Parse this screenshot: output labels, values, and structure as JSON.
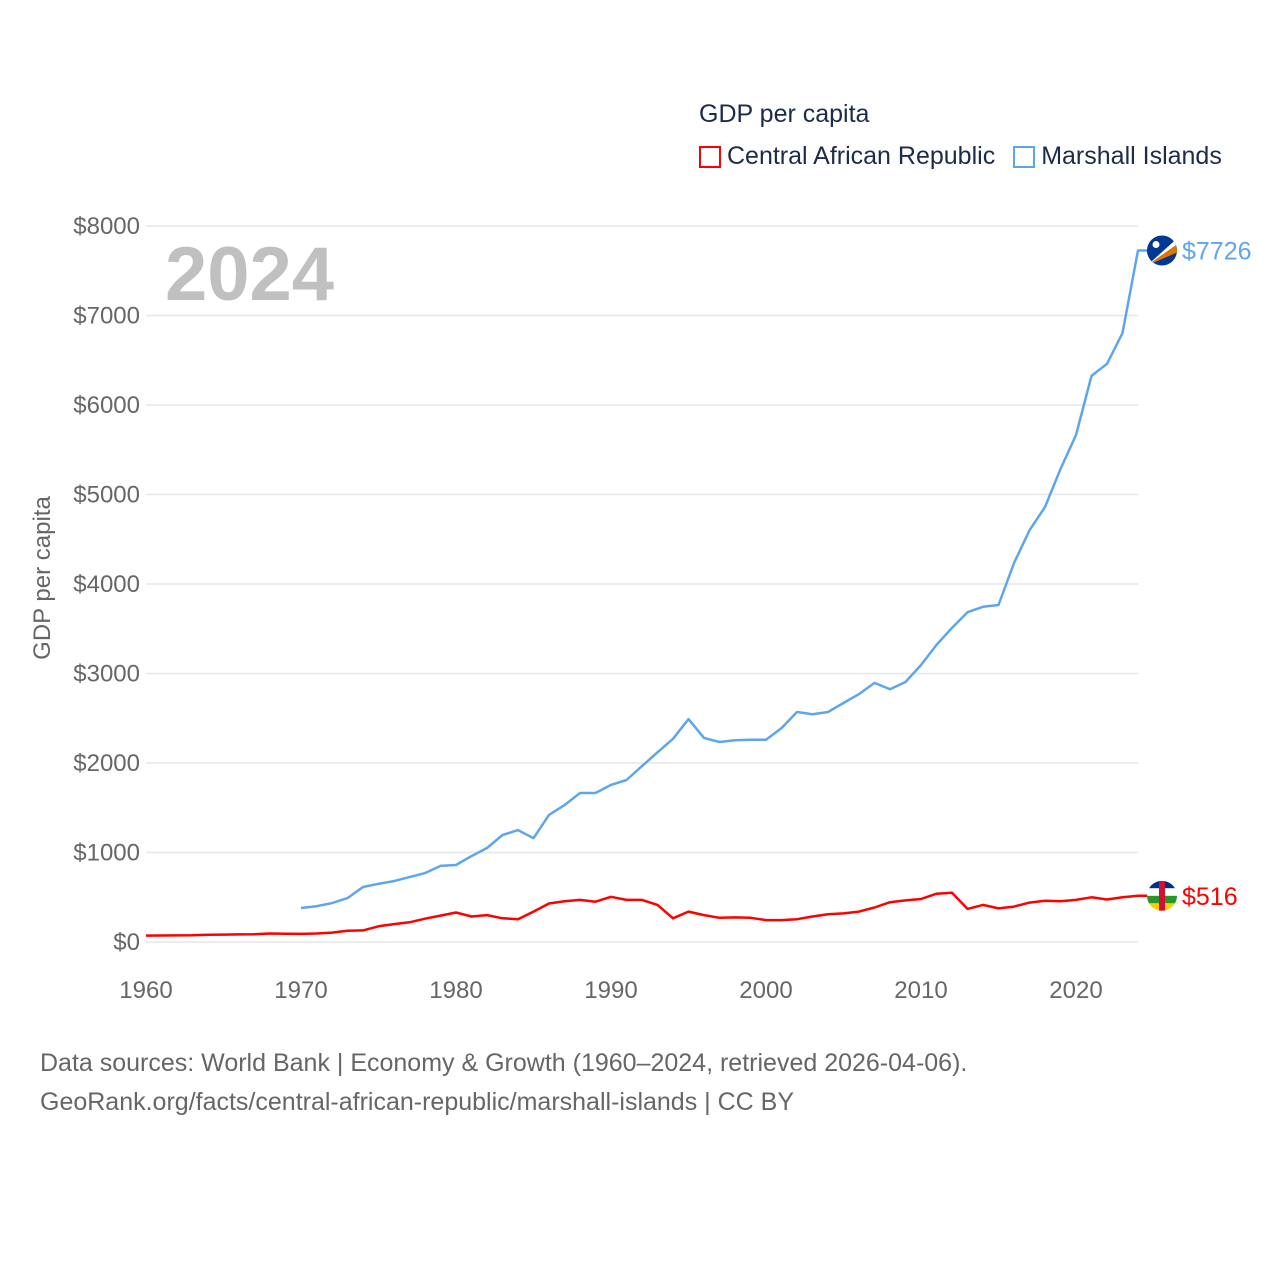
{
  "chart_data": {
    "type": "line",
    "title": "GDP per capita",
    "year_label": "2024",
    "ylabel": "GDP per capita",
    "xlabel": "",
    "xlim": [
      1960,
      2024
    ],
    "ylim": [
      0,
      8000
    ],
    "x_ticks": [
      1960,
      1970,
      1980,
      1990,
      2000,
      2010,
      2020
    ],
    "y_ticks": [
      0,
      1000,
      2000,
      3000,
      4000,
      5000,
      6000,
      7000,
      8000
    ],
    "y_tick_labels": [
      "$0",
      "$1000",
      "$2000",
      "$3000",
      "$4000",
      "$5000",
      "$6000",
      "$7000",
      "$8000"
    ],
    "grid": true,
    "legend_position": "top-right",
    "series": [
      {
        "name": "Central African Republic",
        "color": "#ff0000",
        "flag": "central-african-republic-flag",
        "end_label": "$516",
        "start_year": 1960,
        "values": [
          72,
          73,
          74,
          75,
          80,
          83,
          85,
          86,
          95,
          93,
          90,
          95,
          105,
          125,
          130,
          175,
          200,
          220,
          260,
          295,
          330,
          285,
          300,
          265,
          255,
          340,
          430,
          455,
          470,
          450,
          505,
          470,
          470,
          415,
          265,
          340,
          300,
          270,
          275,
          270,
          245,
          245,
          255,
          285,
          310,
          320,
          340,
          385,
          445,
          465,
          480,
          540,
          550,
          370,
          415,
          375,
          395,
          440,
          460,
          455,
          470,
          500,
          475,
          500,
          516
        ]
      },
      {
        "name": "Marshall Islands",
        "color": "#5ea6ec",
        "flag": "marshall-islands-flag",
        "end_label": "$7726",
        "start_year": 1970,
        "values": [
          380,
          400,
          435,
          490,
          615,
          650,
          680,
          725,
          770,
          850,
          860,
          960,
          1050,
          1195,
          1250,
          1160,
          1420,
          1530,
          1665,
          1665,
          1755,
          1810,
          1965,
          2120,
          2270,
          2490,
          2280,
          2235,
          2255,
          2260,
          2260,
          2390,
          2570,
          2545,
          2570,
          2670,
          2770,
          2895,
          2825,
          2905,
          3095,
          3320,
          3510,
          3685,
          3745,
          3765,
          4235,
          4600,
          4860,
          5285,
          5665,
          6325,
          6460,
          6805,
          7726
        ]
      }
    ]
  },
  "footer": {
    "line1": "Data sources: World Bank | Economy & Growth (1960–2024, retrieved 2026-04-06).",
    "line2": "GeoRank.org/facts/central-african-republic/marshall-islands | CC BY"
  }
}
